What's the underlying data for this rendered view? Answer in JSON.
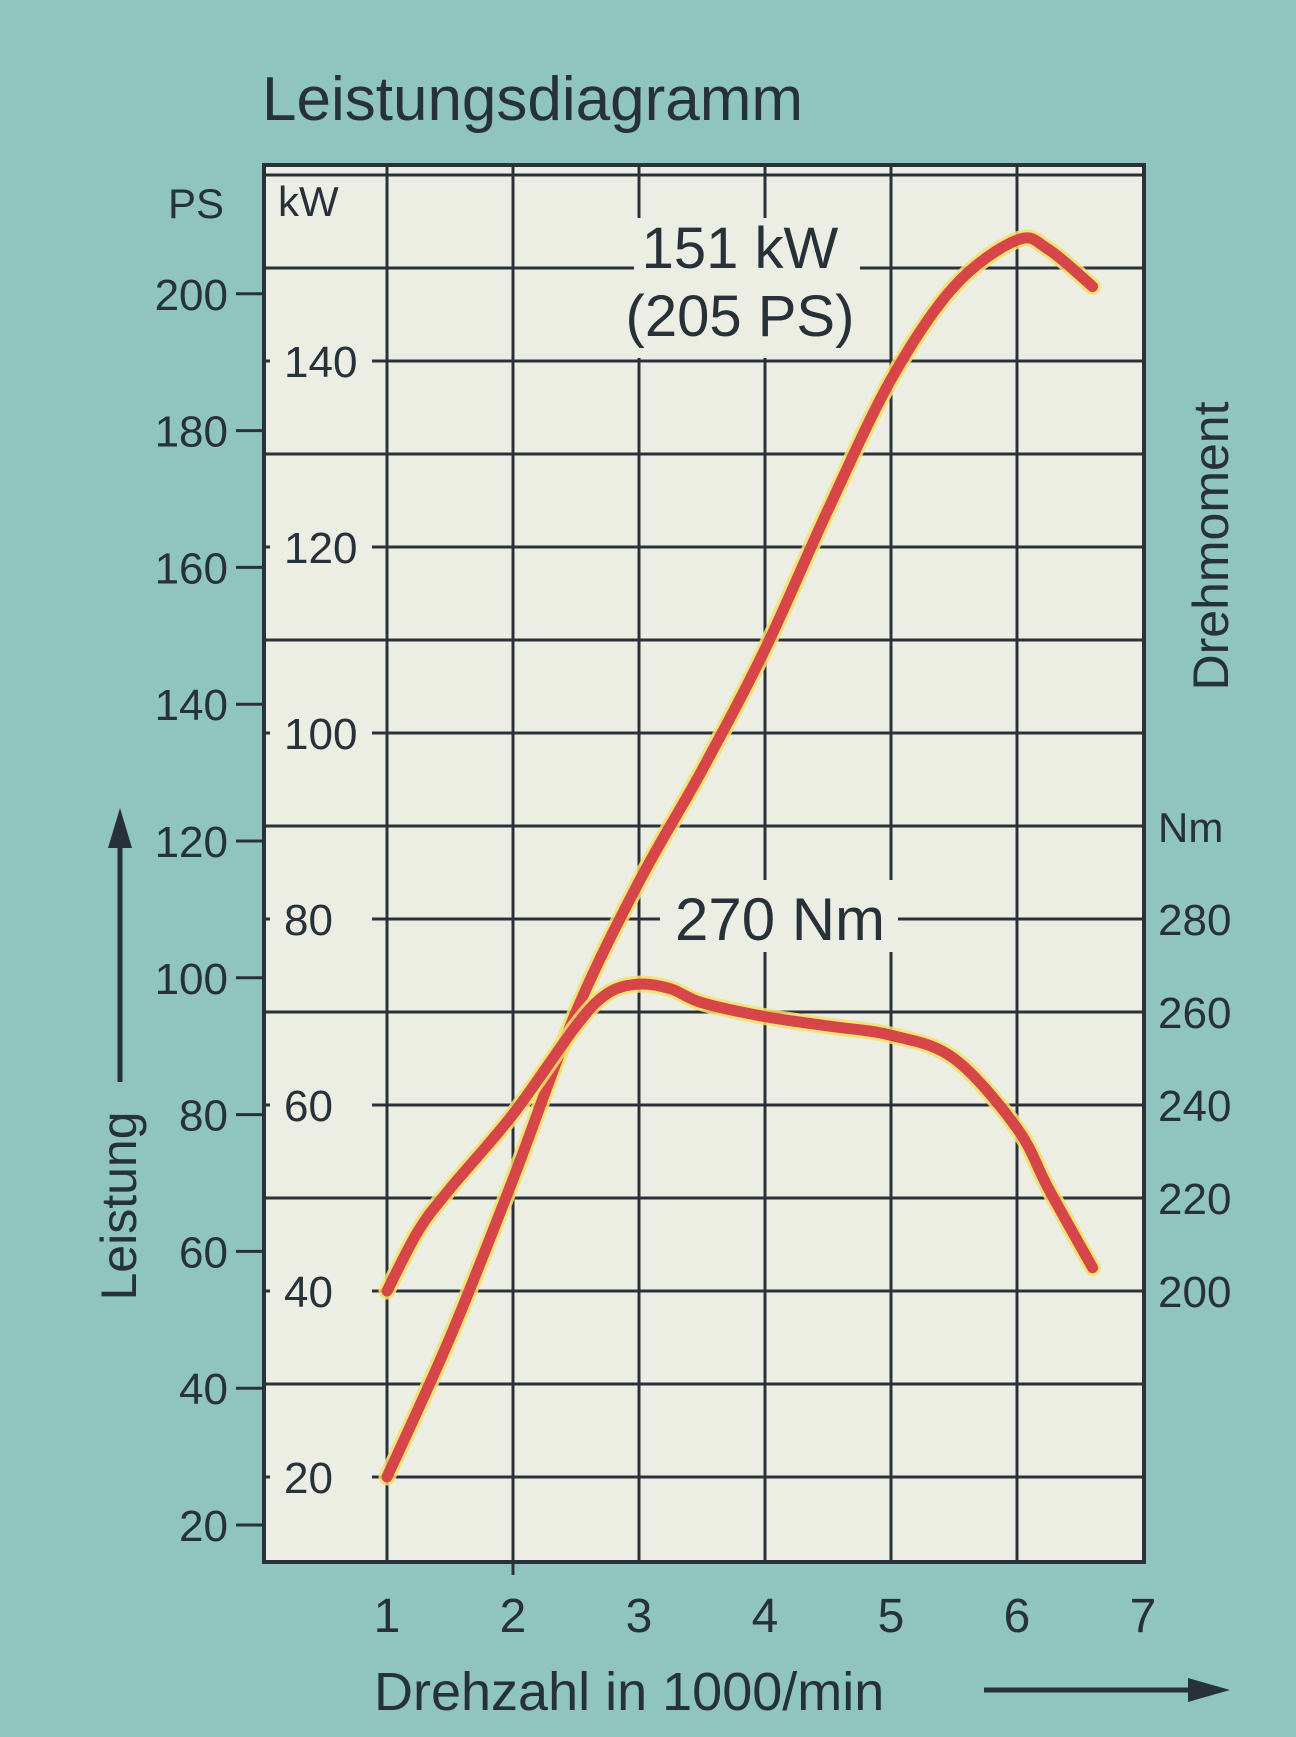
{
  "chart_data": {
    "type": "line",
    "title": "Leistungsdiagramm",
    "xlabel": "Drehzahl in 1000/min",
    "ylabel": "Leistung",
    "ylabel_right": "Drehmoment",
    "x_ticks": [
      "1",
      "2",
      "3",
      "4",
      "5",
      "6",
      "7"
    ],
    "xlim": [
      1,
      7
    ],
    "ps_axis": {
      "unit": "PS",
      "ticks": [
        "20",
        "40",
        "60",
        "80",
        "100",
        "120",
        "140",
        "160",
        "180",
        "200"
      ]
    },
    "kw_axis": {
      "unit": "kW",
      "ticks": [
        "20",
        "40",
        "60",
        "80",
        "100",
        "120",
        "140"
      ]
    },
    "nm_axis": {
      "unit": "Nm",
      "ticks": [
        "200",
        "220",
        "240",
        "260",
        "280"
      ]
    },
    "ylim_kw": [
      10,
      160
    ],
    "ylim_nm": [
      180,
      300
    ],
    "grid": true,
    "series": [
      {
        "axis": "kW",
        "x": [
          1,
          1.5,
          2,
          2.5,
          3,
          3.5,
          4,
          4.5,
          5,
          5.5,
          6,
          6.25,
          6.6
        ],
        "values": [
          20,
          35,
          52,
          70,
          84,
          96,
          109,
          124,
          138,
          148,
          153,
          152,
          148
        ]
      },
      {
        "axis": "Nm",
        "x": [
          1,
          1.25,
          1.5,
          2,
          2.5,
          2.75,
          3,
          3.25,
          3.5,
          4,
          4.5,
          5,
          5.5,
          6,
          6.25,
          6.6
        ],
        "values": [
          200,
          213,
          222,
          238,
          257,
          264,
          266,
          265,
          262,
          259,
          257,
          255,
          250,
          235,
          222,
          205
        ]
      }
    ],
    "annotations": [
      {
        "lines": [
          "151 kW",
          "(205 PS)"
        ],
        "x": 4.4,
        "y_kw": 145
      },
      {
        "lines": [
          "270 Nm"
        ],
        "x": 4.2,
        "y_nm": 280
      }
    ],
    "colors": {
      "curve": "#d64548",
      "curve_glow": "#f4e06a",
      "plot_bg": "#eceee3",
      "grid": "#2b3138",
      "background": "#8fc4bf"
    }
  }
}
